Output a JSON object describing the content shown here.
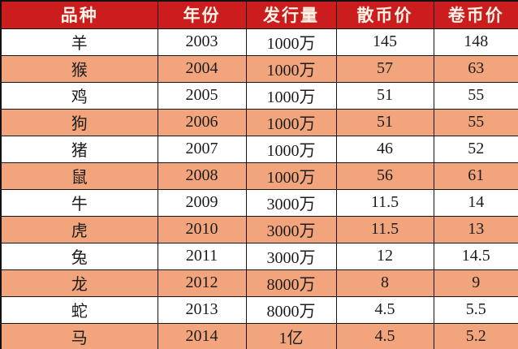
{
  "chart_data": {
    "type": "table",
    "columns": [
      "品种",
      "年份",
      "发行量",
      "散币价",
      "卷币价"
    ],
    "column_keys": [
      "variety",
      "year",
      "mintage",
      "loose-coin-price",
      "roll-coin-price"
    ],
    "rows": [
      [
        "羊",
        2003,
        "1000万",
        145,
        148
      ],
      [
        "猴",
        2004,
        "1000万",
        57,
        63
      ],
      [
        "鸡",
        2005,
        "1000万",
        51,
        55
      ],
      [
        "狗",
        2006,
        "1000万",
        51,
        55
      ],
      [
        "猪",
        2007,
        "1000万",
        46,
        52
      ],
      [
        "鼠",
        2008,
        "1000万",
        56,
        61
      ],
      [
        "牛",
        2009,
        "3000万",
        11.5,
        14
      ],
      [
        "虎",
        2010,
        "3000万",
        11.5,
        13
      ],
      [
        "兔",
        2011,
        "3000万",
        12,
        14.5
      ],
      [
        "龙",
        2012,
        "8000万",
        8,
        9
      ],
      [
        "蛇",
        2013,
        "8000万",
        4.5,
        5.5
      ],
      [
        "马",
        2014,
        "1亿",
        4.5,
        5.2
      ]
    ]
  },
  "colors": {
    "header_bg": "#cb1d1d",
    "header_text": "#fdf3e6",
    "row_bg": "#ffffff",
    "row_alt_bg": "#f2a57c",
    "border": "#161616",
    "cell_text": "#1c1c1c"
  }
}
